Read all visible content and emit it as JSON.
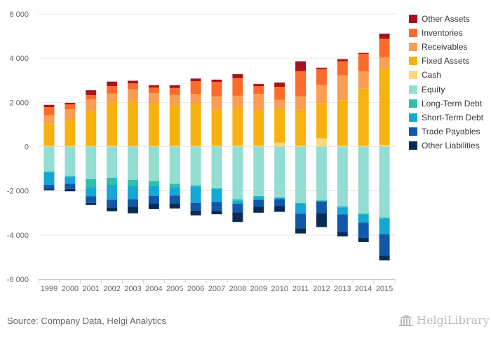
{
  "chart_data": {
    "type": "bar",
    "stacked": true,
    "categories": [
      "1999",
      "2000",
      "2001",
      "2002",
      "2003",
      "2004",
      "2005",
      "2006",
      "2007",
      "2008",
      "2009",
      "2010",
      "2011",
      "2012",
      "2013",
      "2014",
      "2015"
    ],
    "y_ticks": [
      6000,
      4000,
      2000,
      0,
      -2000,
      -4000,
      -6000
    ],
    "y_tick_labels": [
      "6 000",
      "4 000",
      "2 000",
      "0",
      "-2 000",
      "-4 000",
      "-6 000"
    ],
    "ylim": [
      -6000,
      6000
    ],
    "legend_position": "right",
    "asset_series": [
      {
        "name": "Cash",
        "color": "#fcd77f",
        "values": [
          30,
          30,
          30,
          30,
          30,
          30,
          30,
          30,
          30,
          40,
          40,
          180,
          40,
          380,
          40,
          40,
          70
        ]
      },
      {
        "name": "Fixed Assets",
        "color": "#f7b20f",
        "values": [
          1020,
          1170,
          1590,
          1960,
          2000,
          1910,
          1840,
          1900,
          1650,
          1710,
          1620,
          1520,
          1630,
          1590,
          2060,
          2580,
          3480
        ]
      },
      {
        "name": "Receivables",
        "color": "#fb9d52",
        "values": [
          370,
          490,
          510,
          410,
          560,
          480,
          460,
          450,
          600,
          550,
          720,
          420,
          600,
          820,
          1130,
          800,
          490
        ]
      },
      {
        "name": "Inventories",
        "color": "#fb6c2b",
        "values": [
          370,
          220,
          200,
          340,
          270,
          250,
          320,
          580,
          650,
          800,
          350,
          580,
          1150,
          720,
          630,
          770,
          840
        ]
      },
      {
        "name": "Other Assets",
        "color": "#a6131e",
        "values": [
          100,
          70,
          220,
          200,
          120,
          110,
          130,
          120,
          100,
          180,
          100,
          200,
          440,
          60,
          100,
          50,
          230
        ]
      }
    ],
    "liability_series": [
      {
        "name": "Equity",
        "color": "#93ddd3",
        "values": [
          -1130,
          -1330,
          -1470,
          -1410,
          -1500,
          -1560,
          -1680,
          -1760,
          -1880,
          -2390,
          -2230,
          -2290,
          -2550,
          -2430,
          -2710,
          -3030,
          -3210
        ]
      },
      {
        "name": "Long-Term Debt",
        "color": "#2fbfac",
        "values": [
          -40,
          -40,
          -370,
          -330,
          -290,
          -230,
          -160,
          -40,
          -30,
          -80,
          -80,
          -30,
          -30,
          -40,
          -40,
          -40,
          -40
        ]
      },
      {
        "name": "Short-Term Debt",
        "color": "#14a8d7",
        "values": [
          -560,
          -310,
          -400,
          -660,
          -590,
          -440,
          -370,
          -740,
          -600,
          -120,
          -110,
          -60,
          -460,
          -10,
          -320,
          -370,
          -710
        ]
      },
      {
        "name": "Trade Payables",
        "color": "#1058aa",
        "values": [
          -190,
          -230,
          -300,
          -350,
          -340,
          -350,
          -370,
          -350,
          -380,
          -380,
          -300,
          -300,
          -660,
          -540,
          -790,
          -690,
          -980
        ]
      },
      {
        "name": "Other Liabilities",
        "color": "#082c57",
        "values": [
          -60,
          -110,
          -100,
          -180,
          -300,
          -250,
          -220,
          -220,
          -170,
          -440,
          -270,
          -270,
          -230,
          -620,
          -200,
          -190,
          -210
        ]
      }
    ]
  },
  "legend": [
    {
      "label": "Other Assets",
      "color": "#a6131e"
    },
    {
      "label": "Inventories",
      "color": "#fb6c2b"
    },
    {
      "label": "Receivables",
      "color": "#fb9d52"
    },
    {
      "label": "Fixed Assets",
      "color": "#f7b20f"
    },
    {
      "label": "Cash",
      "color": "#fcd77f"
    },
    {
      "label": "Equity",
      "color": "#93ddd3"
    },
    {
      "label": "Long-Term Debt",
      "color": "#2fbfac"
    },
    {
      "label": "Short-Term Debt",
      "color": "#14a8d7"
    },
    {
      "label": "Trade Payables",
      "color": "#1058aa"
    },
    {
      "label": "Other Liabilities",
      "color": "#082c57"
    }
  ],
  "footer": {
    "source": "Source: Company Data, Helgi Analytics",
    "brand": "HelgiLibrary"
  }
}
